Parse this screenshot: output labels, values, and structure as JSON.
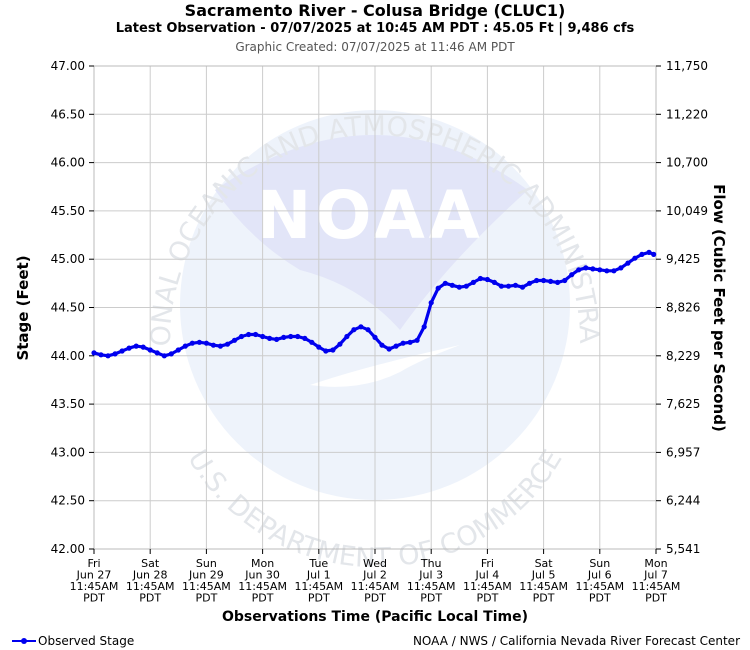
{
  "header": {
    "title": "Sacramento River - Colusa Bridge (CLUC1)",
    "subtitle": "Latest Observation - 07/07/2025 at 10:45 AM PDT : 45.05 Ft | 9,486 cfs",
    "created": "Graphic Created: 07/07/2025 at 11:46 AM PDT"
  },
  "watermark": {
    "ring_top": "NATIONAL OCEANIC AND ATMOSPHERIC ADMINISTRATION",
    "ring_bottom": "U.S. DEPARTMENT OF COMMERCE",
    "logo_text": "NOAA"
  },
  "footer": {
    "legend_label": "Observed Stage",
    "credit": "NOAA / NWS / California Nevada River Forecast Center"
  },
  "colors": {
    "series": "#0000ee",
    "grid": "#cccccc",
    "watermark": "#e6ecf8"
  },
  "chart_data": {
    "type": "line",
    "xlabel": "Observations Time (Pacific Local Time)",
    "ylabel": "Stage (Feet)",
    "ylabel_right": "Flow (Cubic Feet per Second)",
    "ylim": [
      42.0,
      47.0
    ],
    "xlim": [
      "2025-06-27T11:45",
      "2025-07-07T11:45"
    ],
    "grid": true,
    "y_ticks": [
      "42.00",
      "42.50",
      "43.00",
      "43.50",
      "44.00",
      "44.50",
      "45.00",
      "45.50",
      "46.00",
      "46.50",
      "47.00"
    ],
    "y_right_ticks": [
      "5,541",
      "6,244",
      "6,957",
      "7,625",
      "8,229",
      "8,826",
      "9,425",
      "10,049",
      "10,700",
      "11,220",
      "11,750"
    ],
    "x_ticks": [
      [
        "Fri",
        "Jun 27",
        "11:45AM",
        "PDT"
      ],
      [
        "Sat",
        "Jun 28",
        "11:45AM",
        "PDT"
      ],
      [
        "Sun",
        "Jun 29",
        "11:45AM",
        "PDT"
      ],
      [
        "Mon",
        "Jun 30",
        "11:45AM",
        "PDT"
      ],
      [
        "Tue",
        "Jul 1",
        "11:45AM",
        "PDT"
      ],
      [
        "Wed",
        "Jul 2",
        "11:45AM",
        "PDT"
      ],
      [
        "Thu",
        "Jul 3",
        "11:45AM",
        "PDT"
      ],
      [
        "Fri",
        "Jul 4",
        "11:45AM",
        "PDT"
      ],
      [
        "Sat",
        "Jul 5",
        "11:45AM",
        "PDT"
      ],
      [
        "Sun",
        "Jul 6",
        "11:45AM",
        "PDT"
      ],
      [
        "Mon",
        "Jul 7",
        "11:45AM",
        "PDT"
      ]
    ],
    "series": [
      {
        "name": "Observed Stage",
        "points": [
          [
            "2025-06-27T11:45",
            44.03
          ],
          [
            "2025-06-27T14:45",
            44.01
          ],
          [
            "2025-06-27T17:45",
            44.0
          ],
          [
            "2025-06-27T20:45",
            44.02
          ],
          [
            "2025-06-27T23:45",
            44.05
          ],
          [
            "2025-06-28T02:45",
            44.08
          ],
          [
            "2025-06-28T05:45",
            44.1
          ],
          [
            "2025-06-28T08:45",
            44.09
          ],
          [
            "2025-06-28T11:45",
            44.06
          ],
          [
            "2025-06-28T14:45",
            44.03
          ],
          [
            "2025-06-28T17:45",
            44.0
          ],
          [
            "2025-06-28T20:45",
            44.02
          ],
          [
            "2025-06-28T23:45",
            44.06
          ],
          [
            "2025-06-29T02:45",
            44.1
          ],
          [
            "2025-06-29T05:45",
            44.13
          ],
          [
            "2025-06-29T08:45",
            44.14
          ],
          [
            "2025-06-29T11:45",
            44.13
          ],
          [
            "2025-06-29T14:45",
            44.11
          ],
          [
            "2025-06-29T17:45",
            44.1
          ],
          [
            "2025-06-29T20:45",
            44.12
          ],
          [
            "2025-06-29T23:45",
            44.16
          ],
          [
            "2025-06-30T02:45",
            44.2
          ],
          [
            "2025-06-30T05:45",
            44.22
          ],
          [
            "2025-06-30T08:45",
            44.22
          ],
          [
            "2025-06-30T11:45",
            44.2
          ],
          [
            "2025-06-30T14:45",
            44.18
          ],
          [
            "2025-06-30T17:45",
            44.17
          ],
          [
            "2025-06-30T20:45",
            44.19
          ],
          [
            "2025-06-30T23:45",
            44.2
          ],
          [
            "2025-07-01T02:45",
            44.2
          ],
          [
            "2025-07-01T05:45",
            44.18
          ],
          [
            "2025-07-01T08:45",
            44.14
          ],
          [
            "2025-07-01T11:45",
            44.09
          ],
          [
            "2025-07-01T14:45",
            44.05
          ],
          [
            "2025-07-01T17:45",
            44.06
          ],
          [
            "2025-07-01T20:45",
            44.12
          ],
          [
            "2025-07-01T23:45",
            44.2
          ],
          [
            "2025-07-02T02:45",
            44.27
          ],
          [
            "2025-07-02T05:45",
            44.3
          ],
          [
            "2025-07-02T08:45",
            44.27
          ],
          [
            "2025-07-02T11:45",
            44.19
          ],
          [
            "2025-07-02T14:45",
            44.11
          ],
          [
            "2025-07-02T17:45",
            44.07
          ],
          [
            "2025-07-02T20:45",
            44.1
          ],
          [
            "2025-07-02T23:45",
            44.13
          ],
          [
            "2025-07-03T02:45",
            44.14
          ],
          [
            "2025-07-03T05:45",
            44.16
          ],
          [
            "2025-07-03T08:45",
            44.3
          ],
          [
            "2025-07-03T11:45",
            44.55
          ],
          [
            "2025-07-03T14:45",
            44.7
          ],
          [
            "2025-07-03T17:45",
            44.75
          ],
          [
            "2025-07-03T20:45",
            44.73
          ],
          [
            "2025-07-03T23:45",
            44.71
          ],
          [
            "2025-07-04T02:45",
            44.72
          ],
          [
            "2025-07-04T05:45",
            44.76
          ],
          [
            "2025-07-04T08:45",
            44.8
          ],
          [
            "2025-07-04T11:45",
            44.79
          ],
          [
            "2025-07-04T14:45",
            44.76
          ],
          [
            "2025-07-04T17:45",
            44.72
          ],
          [
            "2025-07-04T20:45",
            44.72
          ],
          [
            "2025-07-04T23:45",
            44.73
          ],
          [
            "2025-07-05T02:45",
            44.71
          ],
          [
            "2025-07-05T05:45",
            44.75
          ],
          [
            "2025-07-05T08:45",
            44.78
          ],
          [
            "2025-07-05T11:45",
            44.78
          ],
          [
            "2025-07-05T14:45",
            44.77
          ],
          [
            "2025-07-05T17:45",
            44.76
          ],
          [
            "2025-07-05T20:45",
            44.78
          ],
          [
            "2025-07-05T23:45",
            44.84
          ],
          [
            "2025-07-06T02:45",
            44.89
          ],
          [
            "2025-07-06T05:45",
            44.91
          ],
          [
            "2025-07-06T08:45",
            44.9
          ],
          [
            "2025-07-06T11:45",
            44.89
          ],
          [
            "2025-07-06T14:45",
            44.88
          ],
          [
            "2025-07-06T17:45",
            44.88
          ],
          [
            "2025-07-06T20:45",
            44.91
          ],
          [
            "2025-07-06T23:45",
            44.96
          ],
          [
            "2025-07-07T02:45",
            45.01
          ],
          [
            "2025-07-07T05:45",
            45.05
          ],
          [
            "2025-07-07T08:45",
            45.07
          ],
          [
            "2025-07-07T10:45",
            45.05
          ]
        ]
      }
    ]
  }
}
